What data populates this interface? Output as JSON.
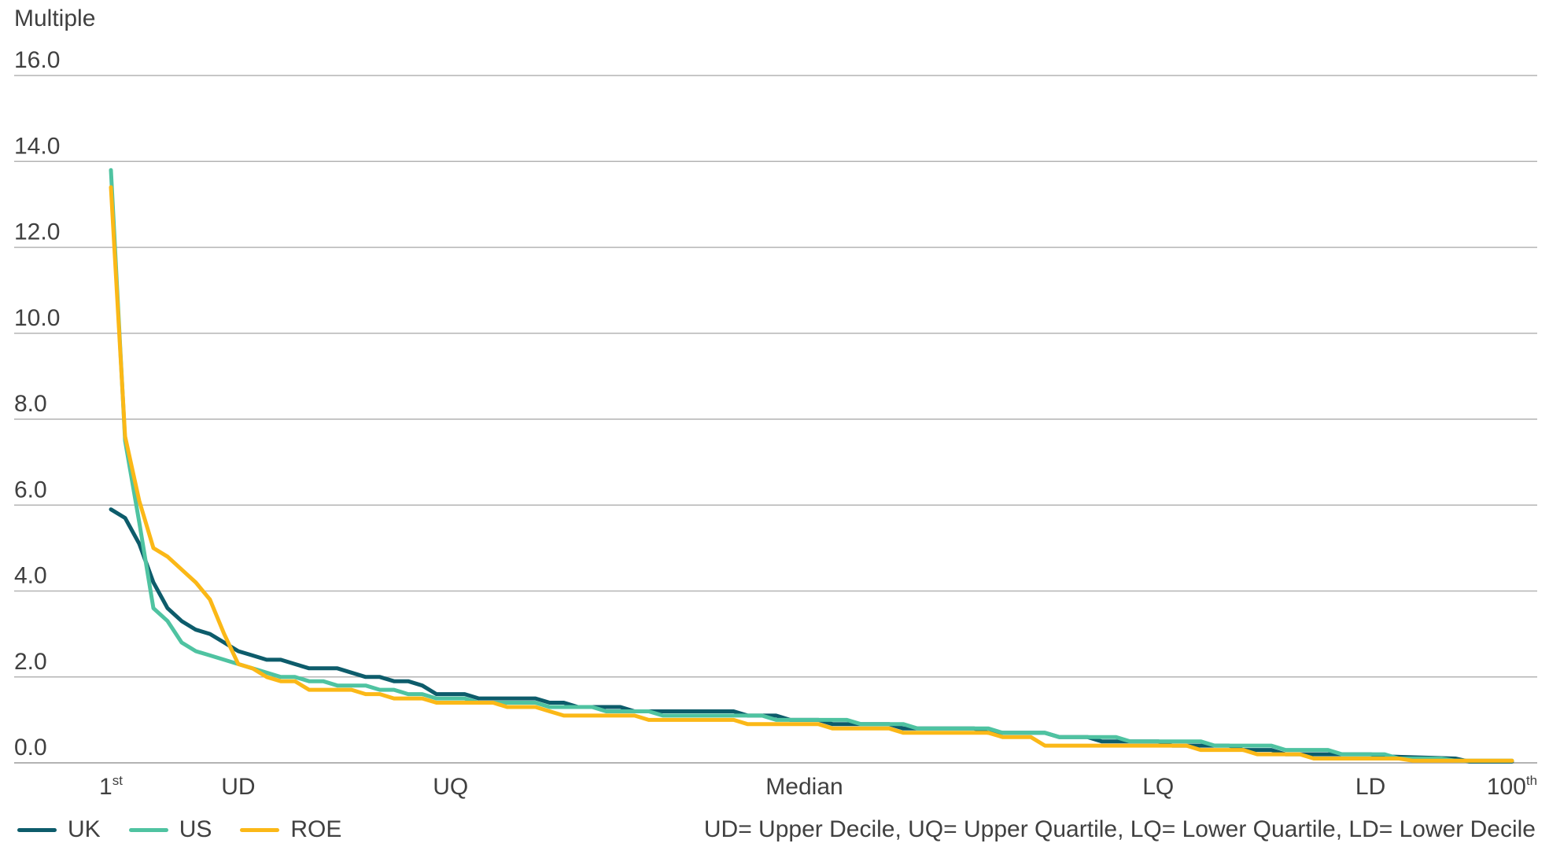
{
  "chart_data": {
    "type": "line",
    "ylabel": "Multiple",
    "ylim": [
      0,
      16
    ],
    "yticks": [
      "0.0",
      "2.0",
      "4.0",
      "6.0",
      "8.0",
      "10.0",
      "12.0",
      "14.0",
      "16.0"
    ],
    "grid": "horizontal",
    "xlim": [
      1,
      100
    ],
    "x_tick_labels": [
      {
        "x": 1,
        "label": "1",
        "sup": "st"
      },
      {
        "x": 10,
        "label": "UD",
        "sup": ""
      },
      {
        "x": 25,
        "label": "UQ",
        "sup": ""
      },
      {
        "x": 50,
        "label": "Median",
        "sup": ""
      },
      {
        "x": 75,
        "label": "LQ",
        "sup": ""
      },
      {
        "x": 90,
        "label": "LD",
        "sup": ""
      },
      {
        "x": 100,
        "label": "100",
        "sup": "th"
      }
    ],
    "series": [
      {
        "name": "UK",
        "color": "#0d5c6b",
        "points": [
          [
            1,
            5.9
          ],
          [
            2,
            5.7
          ],
          [
            3,
            5.1
          ],
          [
            4,
            4.2
          ],
          [
            5,
            3.6
          ],
          [
            6,
            3.3
          ],
          [
            7,
            3.1
          ],
          [
            8,
            3.0
          ],
          [
            9,
            2.8
          ],
          [
            10,
            2.6
          ],
          [
            11,
            2.5
          ],
          [
            12,
            2.4
          ],
          [
            13,
            2.4
          ],
          [
            14,
            2.3
          ],
          [
            15,
            2.2
          ],
          [
            16,
            2.2
          ],
          [
            17,
            2.2
          ],
          [
            18,
            2.1
          ],
          [
            19,
            2.0
          ],
          [
            20,
            2.0
          ],
          [
            21,
            1.9
          ],
          [
            22,
            1.9
          ],
          [
            23,
            1.8
          ],
          [
            24,
            1.6
          ],
          [
            25,
            1.6
          ],
          [
            26,
            1.6
          ],
          [
            27,
            1.5
          ],
          [
            28,
            1.5
          ],
          [
            30,
            1.5
          ],
          [
            31,
            1.5
          ],
          [
            32,
            1.4
          ],
          [
            33,
            1.4
          ],
          [
            34,
            1.3
          ],
          [
            37,
            1.3
          ],
          [
            38,
            1.2
          ],
          [
            45,
            1.2
          ],
          [
            46,
            1.1
          ],
          [
            48,
            1.1
          ],
          [
            49,
            1.0
          ],
          [
            51,
            1.0
          ],
          [
            52,
            0.9
          ],
          [
            56,
            0.9
          ],
          [
            57,
            0.8
          ],
          [
            62,
            0.8
          ],
          [
            63,
            0.7
          ],
          [
            67,
            0.7
          ],
          [
            68,
            0.6
          ],
          [
            70,
            0.6
          ],
          [
            71,
            0.5
          ],
          [
            75,
            0.5
          ],
          [
            76,
            0.4
          ],
          [
            80,
            0.4
          ],
          [
            81,
            0.3
          ],
          [
            83,
            0.3
          ],
          [
            84,
            0.2
          ],
          [
            90,
            0.2
          ],
          [
            91,
            0.15
          ],
          [
            96,
            0.1
          ],
          [
            97,
            0.03
          ],
          [
            100,
            0.03
          ]
        ]
      },
      {
        "name": "US",
        "color": "#4fc3a1",
        "points": [
          [
            1,
            13.8
          ],
          [
            2,
            7.5
          ],
          [
            3,
            5.6
          ],
          [
            4,
            3.6
          ],
          [
            5,
            3.3
          ],
          [
            6,
            2.8
          ],
          [
            7,
            2.6
          ],
          [
            8,
            2.5
          ],
          [
            9,
            2.4
          ],
          [
            10,
            2.3
          ],
          [
            11,
            2.2
          ],
          [
            12,
            2.1
          ],
          [
            13,
            2.0
          ],
          [
            14,
            2.0
          ],
          [
            15,
            1.9
          ],
          [
            16,
            1.9
          ],
          [
            17,
            1.8
          ],
          [
            19,
            1.8
          ],
          [
            20,
            1.7
          ],
          [
            21,
            1.7
          ],
          [
            22,
            1.6
          ],
          [
            23,
            1.6
          ],
          [
            24,
            1.5
          ],
          [
            26,
            1.5
          ],
          [
            27,
            1.4
          ],
          [
            31,
            1.4
          ],
          [
            32,
            1.3
          ],
          [
            35,
            1.3
          ],
          [
            36,
            1.2
          ],
          [
            39,
            1.2
          ],
          [
            40,
            1.1
          ],
          [
            47,
            1.1
          ],
          [
            48,
            1.0
          ],
          [
            53,
            1.0
          ],
          [
            54,
            0.9
          ],
          [
            57,
            0.9
          ],
          [
            58,
            0.8
          ],
          [
            63,
            0.8
          ],
          [
            64,
            0.7
          ],
          [
            67,
            0.7
          ],
          [
            68,
            0.6
          ],
          [
            72,
            0.6
          ],
          [
            73,
            0.5
          ],
          [
            78,
            0.5
          ],
          [
            79,
            0.4
          ],
          [
            83,
            0.4
          ],
          [
            84,
            0.3
          ],
          [
            87,
            0.3
          ],
          [
            88,
            0.2
          ],
          [
            91,
            0.2
          ],
          [
            92,
            0.1
          ],
          [
            95,
            0.1
          ],
          [
            96,
            0.05
          ],
          [
            100,
            0.05
          ]
        ]
      },
      {
        "name": "ROE",
        "color": "#fbb817",
        "points": [
          [
            1,
            13.4
          ],
          [
            2,
            7.6
          ],
          [
            3,
            6.1
          ],
          [
            4,
            5.0
          ],
          [
            5,
            4.8
          ],
          [
            6,
            4.5
          ],
          [
            7,
            4.2
          ],
          [
            8,
            3.8
          ],
          [
            9,
            3.0
          ],
          [
            10,
            2.3
          ],
          [
            11,
            2.2
          ],
          [
            12,
            2.0
          ],
          [
            13,
            1.9
          ],
          [
            14,
            1.9
          ],
          [
            15,
            1.7
          ],
          [
            17,
            1.7
          ],
          [
            18,
            1.7
          ],
          [
            19,
            1.6
          ],
          [
            20,
            1.6
          ],
          [
            21,
            1.5
          ],
          [
            23,
            1.5
          ],
          [
            24,
            1.4
          ],
          [
            28,
            1.4
          ],
          [
            29,
            1.3
          ],
          [
            31,
            1.3
          ],
          [
            32,
            1.2
          ],
          [
            33,
            1.1
          ],
          [
            38,
            1.1
          ],
          [
            39,
            1.0
          ],
          [
            45,
            1.0
          ],
          [
            46,
            0.9
          ],
          [
            51,
            0.9
          ],
          [
            52,
            0.8
          ],
          [
            56,
            0.8
          ],
          [
            57,
            0.7
          ],
          [
            63,
            0.7
          ],
          [
            64,
            0.6
          ],
          [
            66,
            0.6
          ],
          [
            67,
            0.4
          ],
          [
            74,
            0.4
          ],
          [
            75,
            0.4
          ],
          [
            77,
            0.4
          ],
          [
            78,
            0.3
          ],
          [
            81,
            0.3
          ],
          [
            82,
            0.2
          ],
          [
            85,
            0.2
          ],
          [
            86,
            0.1
          ],
          [
            92,
            0.1
          ],
          [
            93,
            0.05
          ],
          [
            100,
            0.05
          ]
        ]
      }
    ]
  },
  "footnote": "UD= Upper Decile, UQ= Upper Quartile, LQ= Lower Quartile, LD= Lower Decile"
}
